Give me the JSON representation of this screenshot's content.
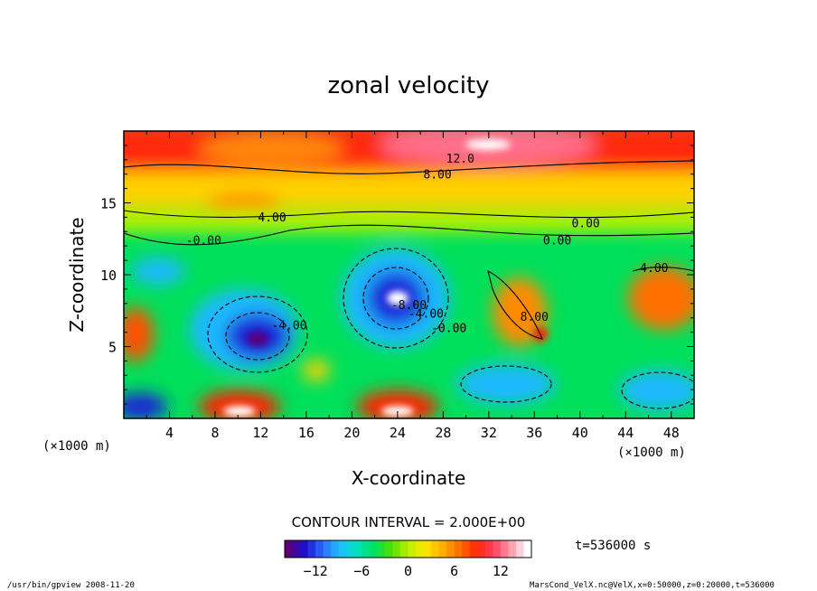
{
  "chart_data": {
    "type": "heatmap",
    "title": "zonal velocity",
    "xlabel": "X-coordinate",
    "ylabel": "Z-coordinate",
    "x_unit_left": "(×1000 m)",
    "x_unit_right": "(×1000 m)",
    "xlim": [
      0,
      50
    ],
    "ylim": [
      0,
      20
    ],
    "xticks": [
      4,
      8,
      12,
      16,
      20,
      24,
      28,
      32,
      36,
      40,
      44,
      48
    ],
    "yticks": [
      5,
      10,
      15
    ],
    "contour_interval_text": "CONTOUR INTERVAL = 2.000E+00",
    "time_text": "t=536000 s",
    "colorbar": {
      "range": [
        -16,
        16
      ],
      "ticks": [
        -12,
        -6,
        0,
        6,
        12
      ],
      "tick_labels": [
        "−12",
        "−6",
        "0",
        "6",
        "12"
      ],
      "colors": [
        "#5a007a",
        "#1a0fd0",
        "#2e6cff",
        "#1fc0ff",
        "#00e0c0",
        "#00e060",
        "#4de000",
        "#b8f000",
        "#ffe800",
        "#ffb000",
        "#ff7000",
        "#ff2800",
        "#ff4060",
        "#ff9aa8",
        "#ffffff"
      ]
    },
    "contour_labels": [
      {
        "text": "12.0",
        "x": 29.5,
        "y": 17.8
      },
      {
        "text": "8.00",
        "x": 27.5,
        "y": 16.7
      },
      {
        "text": "4.00",
        "x": 13.0,
        "y": 13.7
      },
      {
        "text": "-0.00",
        "x": 7.0,
        "y": 12.1
      },
      {
        "text": "0.00",
        "x": 40.5,
        "y": 13.3
      },
      {
        "text": "0.00",
        "x": 38.0,
        "y": 12.1
      },
      {
        "text": "4.00",
        "x": 46.5,
        "y": 10.2
      },
      {
        "text": "-8.00",
        "x": 25.0,
        "y": 7.6
      },
      {
        "text": "-4.00",
        "x": 26.5,
        "y": 7.0
      },
      {
        "text": "-4.00",
        "x": 14.5,
        "y": 6.2
      },
      {
        "text": "8.00",
        "x": 36.0,
        "y": 6.8
      },
      {
        "text": "-0.00",
        "x": 28.5,
        "y": 6.0
      }
    ]
  },
  "footer": {
    "left": "/usr/bin/gpview  2008-11-20",
    "right": "MarsCond_VelX.nc@VelX,x=0:50000,z=0:20000,t=536000"
  }
}
